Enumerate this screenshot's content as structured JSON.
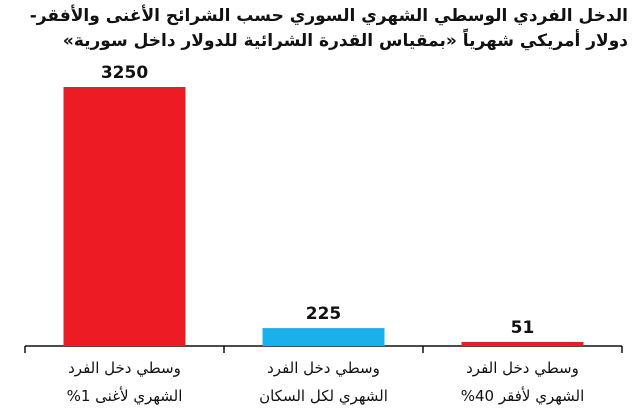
{
  "chart_data": {
    "type": "bar",
    "title": "الدخل الفردي الوسطي الشهري السوري حسب الشرائح الأغنى والأفقر-\nدولار أمريكي شهرياً «بمقياس القدرة الشرائية للدولار داخل سورية»",
    "categories": [
      "وسطي دخل الفرد\nالشهري لأغنى 1%",
      "وسطي دخل الفرد\nالشهري لكل السكان",
      "وسطي دخل الفرد\nالشهري لأفقر 40%"
    ],
    "values": [
      3250,
      225,
      51
    ],
    "colors": [
      "#ed1c24",
      "#1ab0ec",
      "#ed1c24"
    ]
  }
}
